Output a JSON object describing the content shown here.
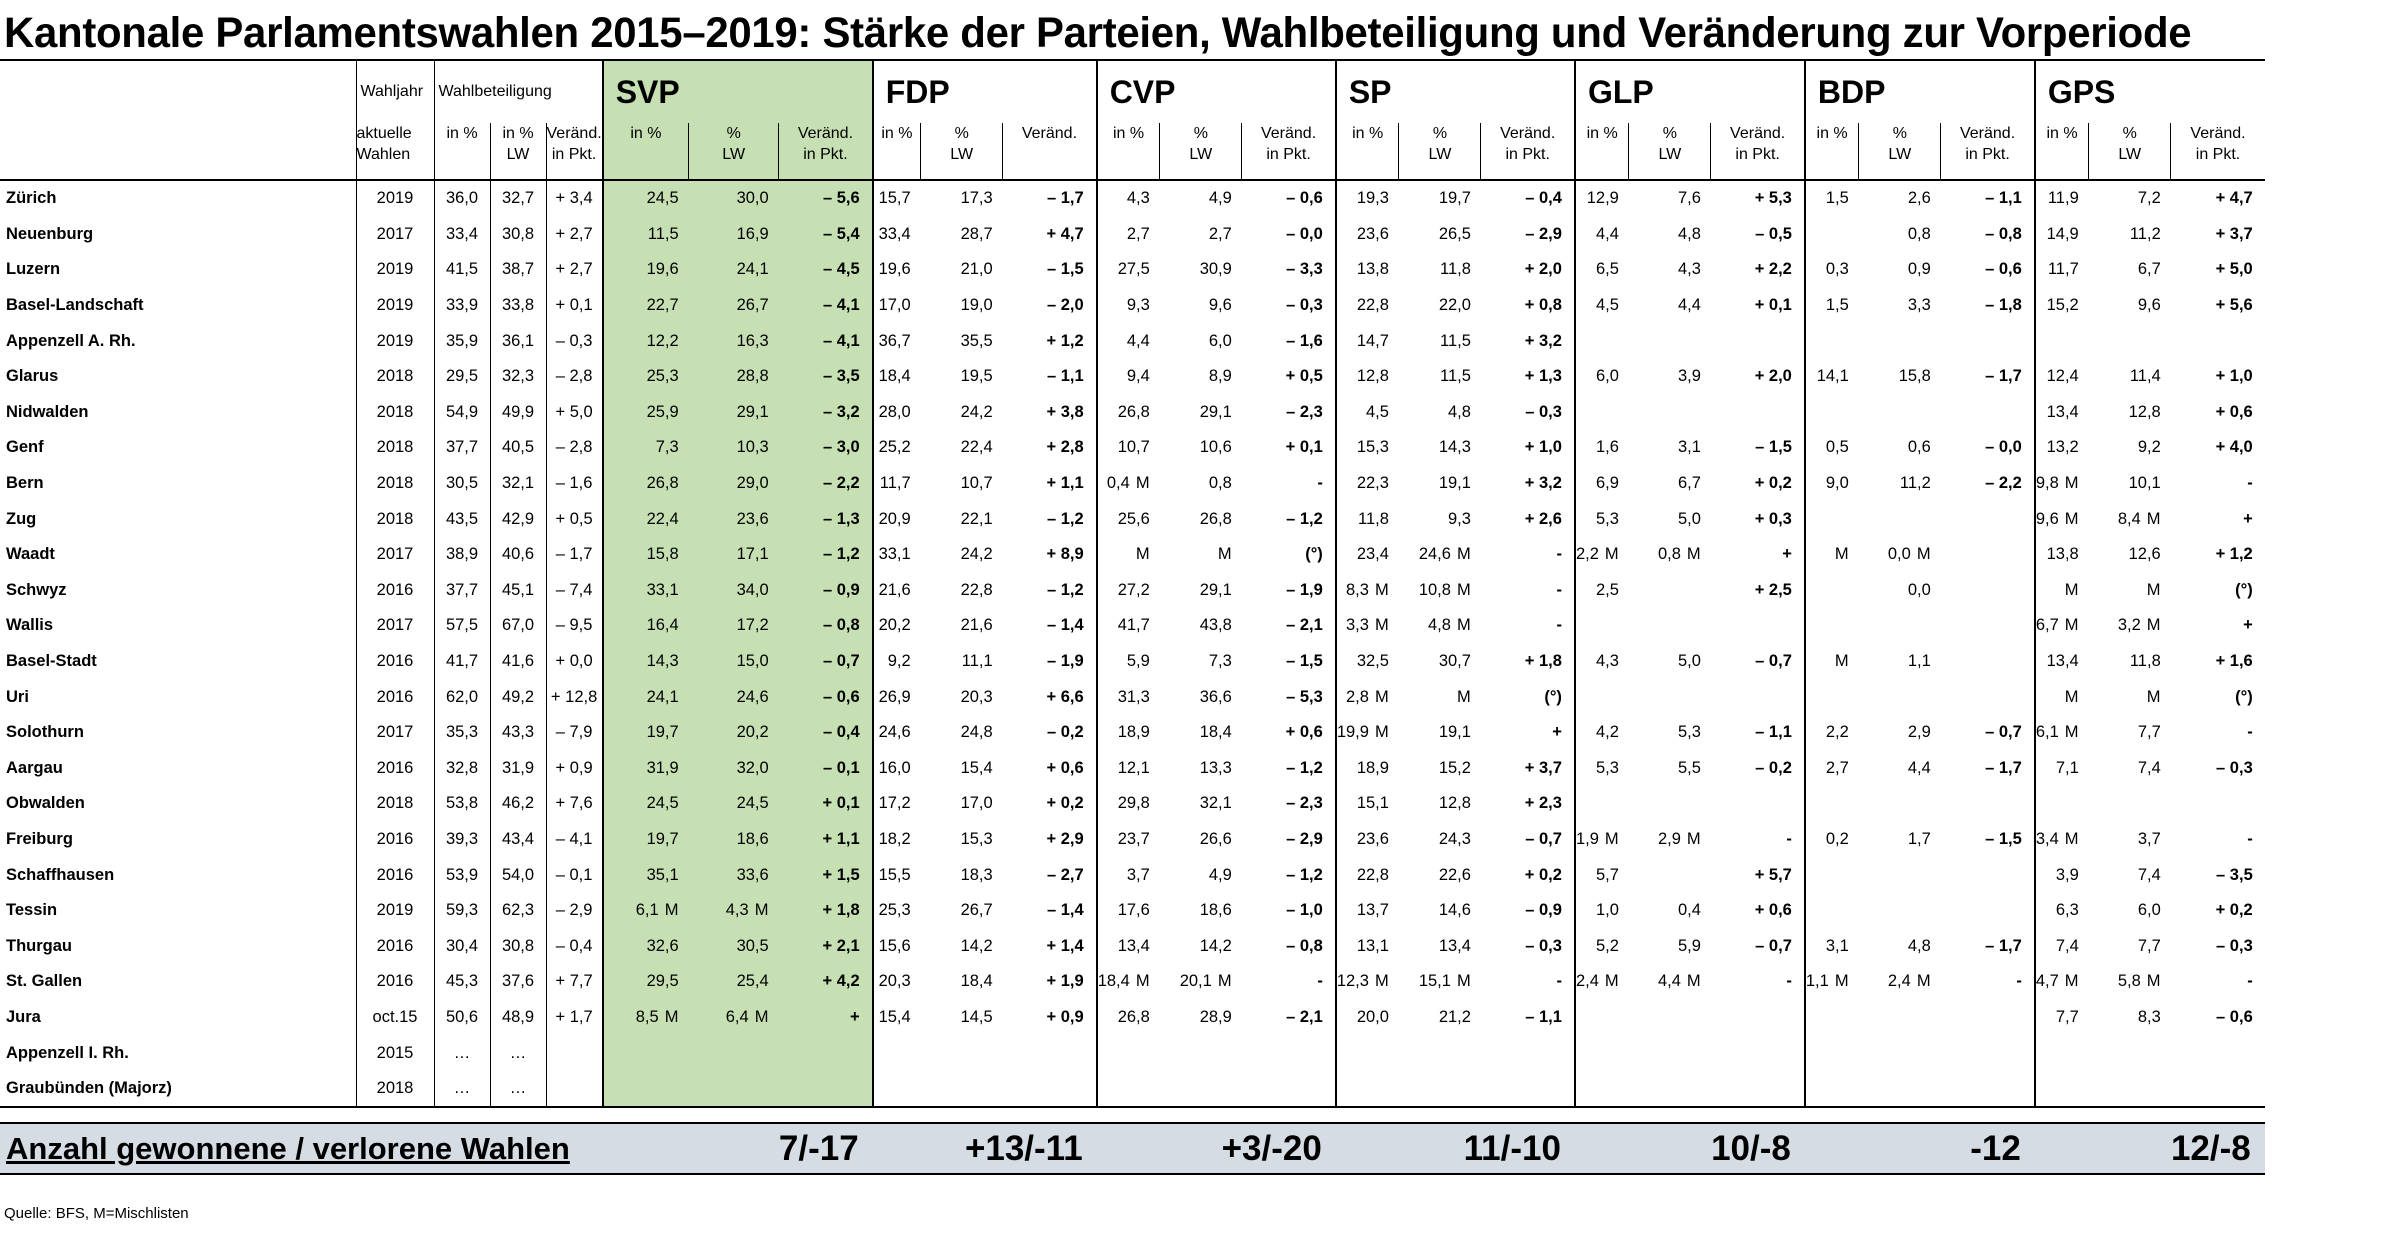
{
  "title": "Kantonale Parlamentswahlen 2015–2019: Stärke der Parteien, Wahlbeteiligung und Veränderung zur Vorperiode",
  "headers": {
    "wahljahr": "Wahljahr",
    "wahlbeteiligung": "Wahlbeteiligung",
    "aktuelle_wahlen_1": "aktuelle",
    "aktuelle_wahlen_2": "Wahlen",
    "in_pct": "in %",
    "pct_lw_1": "in %",
    "pct_lw_2": "LW",
    "pct_lw_party_1": "%",
    "pct_lw_party_2": "LW",
    "veraend_1": "Veränd.",
    "veraend_2": "in Pkt.",
    "veraend_plain": "Veränd."
  },
  "parties": [
    "SVP",
    "FDP",
    "CVP",
    "SP",
    "GLP",
    "BDP",
    "GPS"
  ],
  "rows": [
    {
      "canton": "Zürich",
      "jahr": "2019",
      "wb": [
        "36,0",
        "32,7",
        "+ 3,4"
      ],
      "p": [
        [
          "24,5",
          "30,0",
          "– 5,6"
        ],
        [
          "15,7",
          "17,3",
          "– 1,7"
        ],
        [
          "4,3",
          "4,9",
          "– 0,6"
        ],
        [
          "19,3",
          "19,7",
          "– 0,4"
        ],
        [
          "12,9",
          "7,6",
          "+ 5,3"
        ],
        [
          "1,5",
          "2,6",
          "– 1,1"
        ],
        [
          "11,9",
          "7,2",
          "+ 4,7"
        ]
      ]
    },
    {
      "canton": "Neuenburg",
      "jahr": "2017",
      "wb": [
        "33,4",
        "30,8",
        "+ 2,7"
      ],
      "p": [
        [
          "11,5",
          "16,9",
          "– 5,4"
        ],
        [
          "33,4",
          "28,7",
          "+ 4,7"
        ],
        [
          "2,7",
          "2,7",
          "– 0,0"
        ],
        [
          "23,6",
          "26,5",
          "– 2,9"
        ],
        [
          "4,4",
          "4,8",
          "– 0,5"
        ],
        [
          "",
          "0,8",
          "– 0,8"
        ],
        [
          "14,9",
          "11,2",
          "+ 3,7"
        ]
      ]
    },
    {
      "canton": "Luzern",
      "jahr": "2019",
      "wb": [
        "41,5",
        "38,7",
        "+ 2,7"
      ],
      "p": [
        [
          "19,6",
          "24,1",
          "– 4,5"
        ],
        [
          "19,6",
          "21,0",
          "– 1,5"
        ],
        [
          "27,5",
          "30,9",
          "– 3,3"
        ],
        [
          "13,8",
          "11,8",
          "+ 2,0"
        ],
        [
          "6,5",
          "4,3",
          "+ 2,2"
        ],
        [
          "0,3",
          "0,9",
          "– 0,6"
        ],
        [
          "11,7",
          "6,7",
          "+ 5,0"
        ]
      ]
    },
    {
      "canton": "Basel-Landschaft",
      "jahr": "2019",
      "wb": [
        "33,9",
        "33,8",
        "+ 0,1"
      ],
      "p": [
        [
          "22,7",
          "26,7",
          "– 4,1"
        ],
        [
          "17,0",
          "19,0",
          "– 2,0"
        ],
        [
          "9,3",
          "9,6",
          "– 0,3"
        ],
        [
          "22,8",
          "22,0",
          "+ 0,8"
        ],
        [
          "4,5",
          "4,4",
          "+ 0,1"
        ],
        [
          "1,5",
          "3,3",
          "– 1,8"
        ],
        [
          "15,2",
          "9,6",
          "+ 5,6"
        ]
      ]
    },
    {
      "canton": "Appenzell A. Rh.",
      "jahr": "2019",
      "wb": [
        "35,9",
        "36,1",
        "– 0,3"
      ],
      "p": [
        [
          "12,2",
          "16,3",
          "– 4,1"
        ],
        [
          "36,7",
          "35,5",
          "+ 1,2"
        ],
        [
          "4,4",
          "6,0",
          "– 1,6"
        ],
        [
          "14,7",
          "11,5",
          "+ 3,2"
        ],
        [
          "",
          "",
          ""
        ],
        [
          "",
          "",
          ""
        ],
        [
          "",
          "",
          ""
        ]
      ]
    },
    {
      "canton": "Glarus",
      "jahr": "2018",
      "wb": [
        "29,5",
        "32,3",
        "– 2,8"
      ],
      "p": [
        [
          "25,3",
          "28,8",
          "– 3,5"
        ],
        [
          "18,4",
          "19,5",
          "– 1,1"
        ],
        [
          "9,4",
          "8,9",
          "+ 0,5"
        ],
        [
          "12,8",
          "11,5",
          "+ 1,3"
        ],
        [
          "6,0",
          "3,9",
          "+ 2,0"
        ],
        [
          "14,1",
          "15,8",
          "– 1,7"
        ],
        [
          "12,4",
          "11,4",
          "+ 1,0"
        ]
      ]
    },
    {
      "canton": "Nidwalden",
      "jahr": "2018",
      "wb": [
        "54,9",
        "49,9",
        "+ 5,0"
      ],
      "p": [
        [
          "25,9",
          "29,1",
          "– 3,2"
        ],
        [
          "28,0",
          "24,2",
          "+ 3,8"
        ],
        [
          "26,8",
          "29,1",
          "– 2,3"
        ],
        [
          "4,5",
          "4,8",
          "– 0,3"
        ],
        [
          "",
          "",
          ""
        ],
        [
          "",
          "",
          ""
        ],
        [
          "13,4",
          "12,8",
          "+ 0,6"
        ]
      ]
    },
    {
      "canton": "Genf",
      "jahr": "2018",
      "wb": [
        "37,7",
        "40,5",
        "– 2,8"
      ],
      "p": [
        [
          "7,3",
          "10,3",
          "– 3,0"
        ],
        [
          "25,2",
          "22,4",
          "+ 2,8"
        ],
        [
          "10,7",
          "10,6",
          "+ 0,1"
        ],
        [
          "15,3",
          "14,3",
          "+ 1,0"
        ],
        [
          "1,6",
          "3,1",
          "– 1,5"
        ],
        [
          "0,5",
          "0,6",
          "– 0,0"
        ],
        [
          "13,2",
          "9,2",
          "+ 4,0"
        ]
      ]
    },
    {
      "canton": "Bern",
      "jahr": "2018",
      "wb": [
        "30,5",
        "32,1",
        "– 1,6"
      ],
      "p": [
        [
          "26,8",
          "29,0",
          "– 2,2"
        ],
        [
          "11,7",
          "10,7",
          "+ 1,1"
        ],
        [
          "0,4 M",
          "0,8",
          "-"
        ],
        [
          "22,3",
          "19,1",
          "+ 3,2"
        ],
        [
          "6,9",
          "6,7",
          "+ 0,2"
        ],
        [
          "9,0",
          "11,2",
          "– 2,2"
        ],
        [
          "9,8 M",
          "10,1",
          "-"
        ]
      ]
    },
    {
      "canton": "Zug",
      "jahr": "2018",
      "wb": [
        "43,5",
        "42,9",
        "+ 0,5"
      ],
      "p": [
        [
          "22,4",
          "23,6",
          "– 1,3"
        ],
        [
          "20,9",
          "22,1",
          "– 1,2"
        ],
        [
          "25,6",
          "26,8",
          "– 1,2"
        ],
        [
          "11,8",
          "9,3",
          "+ 2,6"
        ],
        [
          "5,3",
          "5,0",
          "+ 0,3"
        ],
        [
          "",
          "",
          ""
        ],
        [
          "9,6 M",
          "8,4 M",
          "+"
        ]
      ]
    },
    {
      "canton": "Waadt",
      "jahr": "2017",
      "wb": [
        "38,9",
        "40,6",
        "– 1,7"
      ],
      "p": [
        [
          "15,8",
          "17,1",
          "– 1,2"
        ],
        [
          "33,1",
          "24,2",
          "+ 8,9"
        ],
        [
          "M",
          "M",
          "(°)"
        ],
        [
          "23,4",
          "24,6 M",
          "-"
        ],
        [
          "2,2 M",
          "0,8 M",
          "+"
        ],
        [
          "M",
          "0,0 M",
          ""
        ],
        [
          "13,8",
          "12,6",
          "+ 1,2"
        ]
      ]
    },
    {
      "canton": "Schwyz",
      "jahr": "2016",
      "wb": [
        "37,7",
        "45,1",
        "– 7,4"
      ],
      "p": [
        [
          "33,1",
          "34,0",
          "– 0,9"
        ],
        [
          "21,6",
          "22,8",
          "– 1,2"
        ],
        [
          "27,2",
          "29,1",
          "– 1,9"
        ],
        [
          "8,3 M",
          "10,8 M",
          "-"
        ],
        [
          "2,5",
          "",
          "+ 2,5"
        ],
        [
          "",
          "0,0",
          ""
        ],
        [
          "M",
          "M",
          "(°)"
        ]
      ]
    },
    {
      "canton": "Wallis",
      "jahr": "2017",
      "wb": [
        "57,5",
        "67,0",
        "– 9,5"
      ],
      "p": [
        [
          "16,4",
          "17,2",
          "– 0,8"
        ],
        [
          "20,2",
          "21,6",
          "– 1,4"
        ],
        [
          "41,7",
          "43,8",
          "– 2,1"
        ],
        [
          "3,3 M",
          "4,8 M",
          "-"
        ],
        [
          "",
          "",
          ""
        ],
        [
          "",
          "",
          ""
        ],
        [
          "6,7 M",
          "3,2 M",
          "+"
        ]
      ]
    },
    {
      "canton": "Basel-Stadt",
      "jahr": "2016",
      "wb": [
        "41,7",
        "41,6",
        "+ 0,0"
      ],
      "p": [
        [
          "14,3",
          "15,0",
          "– 0,7"
        ],
        [
          "9,2",
          "11,1",
          "– 1,9"
        ],
        [
          "5,9",
          "7,3",
          "– 1,5"
        ],
        [
          "32,5",
          "30,7",
          "+ 1,8"
        ],
        [
          "4,3",
          "5,0",
          "– 0,7"
        ],
        [
          "M",
          "1,1",
          ""
        ],
        [
          "13,4",
          "11,8",
          "+ 1,6"
        ]
      ]
    },
    {
      "canton": "Uri",
      "jahr": "2016",
      "wb": [
        "62,0",
        "49,2",
        "+ 12,8"
      ],
      "p": [
        [
          "24,1",
          "24,6",
          "– 0,6"
        ],
        [
          "26,9",
          "20,3",
          "+ 6,6"
        ],
        [
          "31,3",
          "36,6",
          "– 5,3"
        ],
        [
          "2,8 M",
          "M",
          "(°)"
        ],
        [
          "",
          "",
          ""
        ],
        [
          "",
          "",
          ""
        ],
        [
          "M",
          "M",
          "(°)"
        ]
      ]
    },
    {
      "canton": "Solothurn",
      "jahr": "2017",
      "wb": [
        "35,3",
        "43,3",
        "– 7,9"
      ],
      "p": [
        [
          "19,7",
          "20,2",
          "– 0,4"
        ],
        [
          "24,6",
          "24,8",
          "– 0,2"
        ],
        [
          "18,9",
          "18,4",
          "+ 0,6"
        ],
        [
          "19,9 M",
          "19,1",
          "+"
        ],
        [
          "4,2",
          "5,3",
          "– 1,1"
        ],
        [
          "2,2",
          "2,9",
          "– 0,7"
        ],
        [
          "6,1 M",
          "7,7",
          "-"
        ]
      ]
    },
    {
      "canton": "Aargau",
      "jahr": "2016",
      "wb": [
        "32,8",
        "31,9",
        "+ 0,9"
      ],
      "p": [
        [
          "31,9",
          "32,0",
          "– 0,1"
        ],
        [
          "16,0",
          "15,4",
          "+ 0,6"
        ],
        [
          "12,1",
          "13,3",
          "– 1,2"
        ],
        [
          "18,9",
          "15,2",
          "+ 3,7"
        ],
        [
          "5,3",
          "5,5",
          "– 0,2"
        ],
        [
          "2,7",
          "4,4",
          "– 1,7"
        ],
        [
          "7,1",
          "7,4",
          "– 0,3"
        ]
      ]
    },
    {
      "canton": "Obwalden",
      "jahr": "2018",
      "wb": [
        "53,8",
        "46,2",
        "+ 7,6"
      ],
      "p": [
        [
          "24,5",
          "24,5",
          "+ 0,1"
        ],
        [
          "17,2",
          "17,0",
          "+ 0,2"
        ],
        [
          "29,8",
          "32,1",
          "– 2,3"
        ],
        [
          "15,1",
          "12,8",
          "+ 2,3"
        ],
        [
          "",
          "",
          ""
        ],
        [
          "",
          "",
          ""
        ],
        [
          "",
          "",
          ""
        ]
      ]
    },
    {
      "canton": "Freiburg",
      "jahr": "2016",
      "wb": [
        "39,3",
        "43,4",
        "– 4,1"
      ],
      "p": [
        [
          "19,7",
          "18,6",
          "+ 1,1"
        ],
        [
          "18,2",
          "15,3",
          "+ 2,9"
        ],
        [
          "23,7",
          "26,6",
          "– 2,9"
        ],
        [
          "23,6",
          "24,3",
          "– 0,7"
        ],
        [
          "1,9 M",
          "2,9 M",
          "-"
        ],
        [
          "0,2",
          "1,7",
          "– 1,5"
        ],
        [
          "3,4 M",
          "3,7",
          "-"
        ]
      ]
    },
    {
      "canton": "Schaffhausen",
      "jahr": "2016",
      "wb": [
        "53,9",
        "54,0",
        "– 0,1"
      ],
      "p": [
        [
          "35,1",
          "33,6",
          "+ 1,5"
        ],
        [
          "15,5",
          "18,3",
          "– 2,7"
        ],
        [
          "3,7",
          "4,9",
          "– 1,2"
        ],
        [
          "22,8",
          "22,6",
          "+ 0,2"
        ],
        [
          "5,7",
          "",
          "+ 5,7"
        ],
        [
          "",
          "",
          ""
        ],
        [
          "3,9",
          "7,4",
          "– 3,5"
        ]
      ]
    },
    {
      "canton": "Tessin",
      "jahr": "2019",
      "wb": [
        "59,3",
        "62,3",
        "– 2,9"
      ],
      "p": [
        [
          "6,1 M",
          "4,3 M",
          "+ 1,8"
        ],
        [
          "25,3",
          "26,7",
          "– 1,4"
        ],
        [
          "17,6",
          "18,6",
          "– 1,0"
        ],
        [
          "13,7",
          "14,6",
          "– 0,9"
        ],
        [
          "1,0",
          "0,4",
          "+ 0,6"
        ],
        [
          "",
          "",
          ""
        ],
        [
          "6,3",
          "6,0",
          "+ 0,2"
        ]
      ]
    },
    {
      "canton": "Thurgau",
      "jahr": "2016",
      "wb": [
        "30,4",
        "30,8",
        "– 0,4"
      ],
      "p": [
        [
          "32,6",
          "30,5",
          "+ 2,1"
        ],
        [
          "15,6",
          "14,2",
          "+ 1,4"
        ],
        [
          "13,4",
          "14,2",
          "– 0,8"
        ],
        [
          "13,1",
          "13,4",
          "– 0,3"
        ],
        [
          "5,2",
          "5,9",
          "– 0,7"
        ],
        [
          "3,1",
          "4,8",
          "– 1,7"
        ],
        [
          "7,4",
          "7,7",
          "– 0,3"
        ]
      ]
    },
    {
      "canton": "St. Gallen",
      "jahr": "2016",
      "wb": [
        "45,3",
        "37,6",
        "+ 7,7"
      ],
      "p": [
        [
          "29,5",
          "25,4",
          "+ 4,2"
        ],
        [
          "20,3",
          "18,4",
          "+ 1,9"
        ],
        [
          "18,4 M",
          "20,1 M",
          "-"
        ],
        [
          "12,3 M",
          "15,1 M",
          "-"
        ],
        [
          "2,4 M",
          "4,4 M",
          "-"
        ],
        [
          "1,1 M",
          "2,4 M",
          "-"
        ],
        [
          "4,7 M",
          "5,8 M",
          "-"
        ]
      ]
    },
    {
      "canton": "Jura",
      "jahr": "oct.15",
      "wb": [
        "50,6",
        "48,9",
        "+ 1,7"
      ],
      "p": [
        [
          "8,5 M",
          "6,4 M",
          "+"
        ],
        [
          "15,4",
          "14,5",
          "+ 0,9"
        ],
        [
          "26,8",
          "28,9",
          "– 2,1"
        ],
        [
          "20,0",
          "21,2",
          "– 1,1"
        ],
        [
          "",
          "",
          ""
        ],
        [
          "",
          "",
          ""
        ],
        [
          "7,7",
          "8,3",
          "– 0,6"
        ]
      ]
    },
    {
      "canton": "Appenzell I. Rh.",
      "jahr": "2015",
      "wb": [
        "…",
        "…",
        ""
      ],
      "p": [
        [
          "",
          "",
          ""
        ],
        [
          "",
          "",
          ""
        ],
        [
          "",
          "",
          ""
        ],
        [
          "",
          "",
          ""
        ],
        [
          "",
          "",
          ""
        ],
        [
          "",
          "",
          ""
        ],
        [
          "",
          "",
          ""
        ]
      ]
    },
    {
      "canton": "Graubünden (Majorz)",
      "jahr": "2018",
      "wb": [
        "…",
        "…",
        ""
      ],
      "p": [
        [
          "",
          "",
          ""
        ],
        [
          "",
          "",
          ""
        ],
        [
          "",
          "",
          ""
        ],
        [
          "",
          "",
          ""
        ],
        [
          "",
          "",
          ""
        ],
        [
          "",
          "",
          ""
        ],
        [
          "",
          "",
          ""
        ]
      ]
    }
  ],
  "summary": {
    "label": "Anzahl gewonnene / verlorene Wahlen",
    "values": [
      "7/-17",
      "+13/-11",
      "+3/-20",
      "11/-10",
      "10/-8",
      "-12",
      "12/-8"
    ]
  },
  "source": "Quelle: BFS, M=Mischlisten",
  "colors": {
    "svp_highlight": "#c6e0b4",
    "summary_band": "#d6dce4"
  }
}
